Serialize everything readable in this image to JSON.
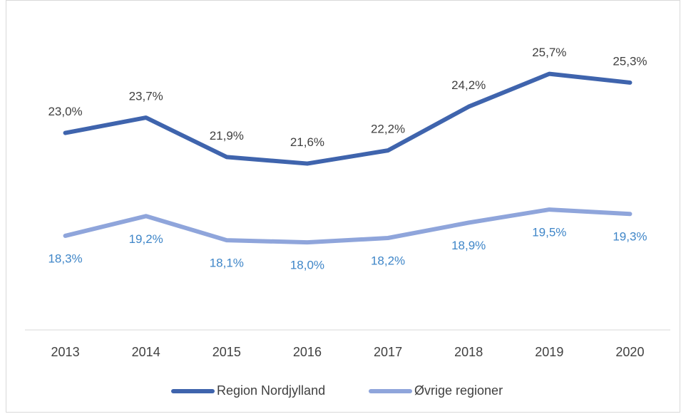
{
  "chart_data": {
    "type": "line",
    "categories": [
      "2013",
      "2014",
      "2015",
      "2016",
      "2017",
      "2018",
      "2019",
      "2020"
    ],
    "series": [
      {
        "name": "Region Nordjylland",
        "color": "#3f64ad",
        "values": [
          23.0,
          23.7,
          21.9,
          21.6,
          22.2,
          24.2,
          25.7,
          25.3
        ],
        "value_labels": [
          "23,0%",
          "23,7%",
          "21,9%",
          "21,6%",
          "22,2%",
          "24,2%",
          "25,7%",
          "25,3%"
        ]
      },
      {
        "name": "Øvrige regioner",
        "color": "#8fa5db",
        "values": [
          18.3,
          19.2,
          18.1,
          18.0,
          18.2,
          18.9,
          19.5,
          19.3
        ],
        "value_labels": [
          "18,3%",
          "19,2%",
          "18,1%",
          "18,0%",
          "18,2%",
          "18,9%",
          "19,5%",
          "19,3%"
        ]
      }
    ],
    "ylim": [
      14,
      28
    ],
    "legend": "bottom"
  }
}
